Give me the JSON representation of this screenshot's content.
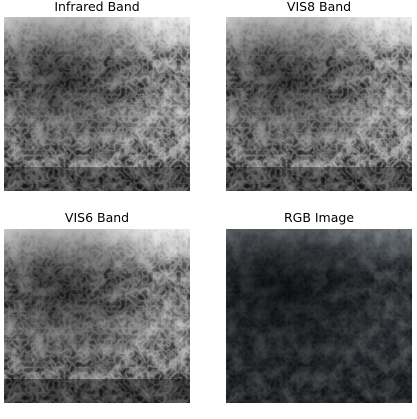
{
  "panels": [
    {
      "title": "Infrared Band",
      "image": "satellite-cloud-image-grayscale"
    },
    {
      "title": "VIS8 Band",
      "image": "satellite-cloud-image-grayscale"
    },
    {
      "title": "VIS6 Band",
      "image": "satellite-cloud-image-grayscale"
    },
    {
      "title": "RGB Image",
      "image": "satellite-cloud-image-rgb-dark"
    }
  ]
}
